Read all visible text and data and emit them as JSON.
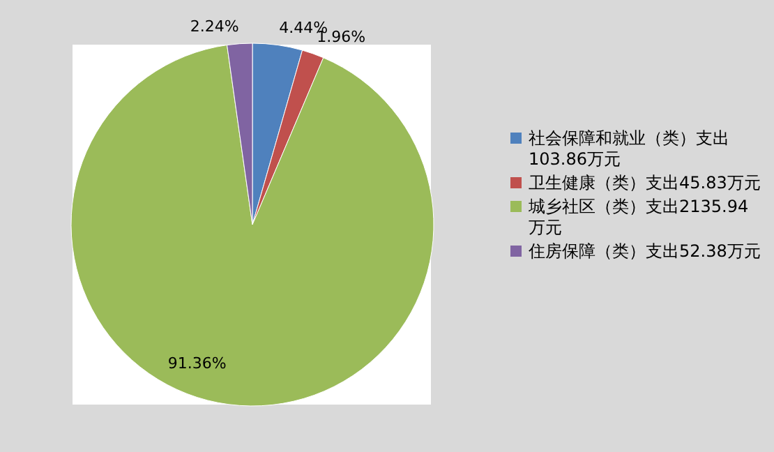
{
  "chart_data": {
    "type": "pie",
    "categories": [
      "社会保障和就业（类）支出103.86万元",
      "卫生健康（类）支出45.83万元",
      "城乡社区（类）支出2135.94万元",
      "住房保障（类）支出52.38万元"
    ],
    "values": [
      4.44,
      1.96,
      91.36,
      2.24
    ],
    "value_labels": [
      "4.44%",
      "1.96%",
      "91.36%",
      "2.24%"
    ],
    "colors": [
      "#4f81bd",
      "#c0504d",
      "#9bbb59",
      "#8064a2"
    ],
    "legend": "right"
  }
}
